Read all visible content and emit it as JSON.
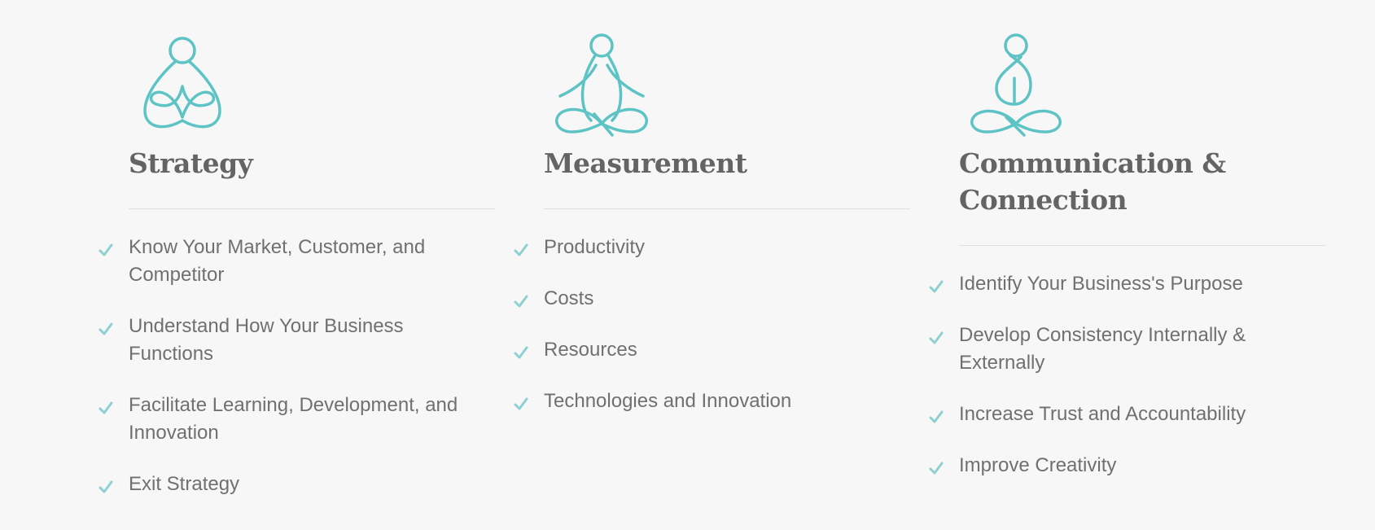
{
  "accent_color": "#5ec3c5",
  "columns": [
    {
      "icon": "meditation-heart-icon",
      "title_lines": [
        "Strategy"
      ],
      "items": [
        "Know Your Market, Customer, and Competitor",
        "Understand How Your Business Functions",
        "Facilitate Learning, Development, and Innovation",
        "Exit Strategy"
      ]
    },
    {
      "icon": "meditation-lotus-icon",
      "title_lines": [
        "Measurement"
      ],
      "items": [
        "Productivity",
        "Costs",
        "Resources",
        "Technologies and Innovation"
      ]
    },
    {
      "icon": "meditation-loop-icon",
      "title_lines": [
        "Communication &",
        "Connection"
      ],
      "items": [
        "Identify Your Business's Purpose",
        "Develop Consistency Internally & Externally",
        "Increase Trust and Accountability",
        "Improve Creativity"
      ]
    }
  ]
}
